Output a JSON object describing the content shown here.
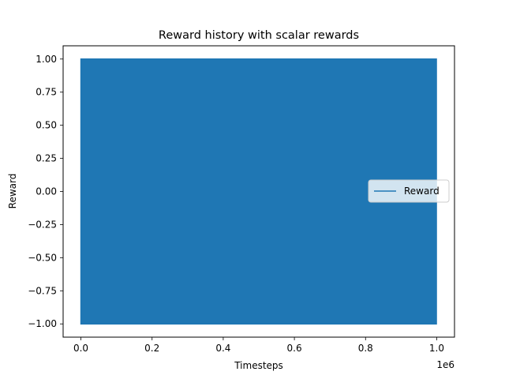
{
  "chart_data": {
    "type": "line",
    "title": "Reward history with scalar rewards",
    "xlabel": "Timesteps",
    "ylabel": "Reward",
    "x_offset_label": "1e6",
    "xlim": [
      -0.05,
      1.05
    ],
    "ylim": [
      -1.1,
      1.1
    ],
    "x_ticks": [
      0.0,
      0.2,
      0.4,
      0.6,
      0.8,
      1.0
    ],
    "x_tick_labels": [
      "0.0",
      "0.2",
      "0.4",
      "0.6",
      "0.8",
      "1.0"
    ],
    "y_ticks": [
      -1.0,
      -0.75,
      -0.5,
      -0.25,
      0.0,
      0.25,
      0.5,
      0.75,
      1.0
    ],
    "y_tick_labels": [
      "−1.00",
      "−0.75",
      "−0.50",
      "−0.25",
      "0.00",
      "0.25",
      "0.50",
      "0.75",
      "1.00"
    ],
    "grid": false,
    "legend_position": "center-right",
    "series": [
      {
        "name": "Reward",
        "color": "#1f77b4",
        "x_range": [
          0.0,
          1.0
        ],
        "y_min": -1.0,
        "y_max": 1.0,
        "note": "dense oscillation between -1 and 1 over all timesteps"
      }
    ]
  }
}
